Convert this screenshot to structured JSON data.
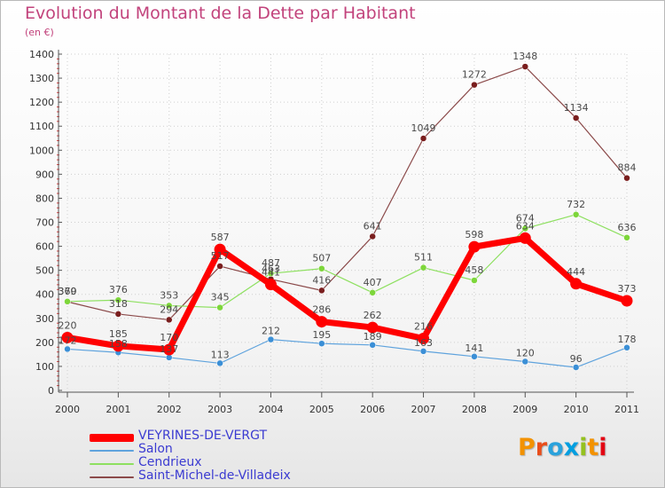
{
  "title": "Evolution du Montant de la Dette par Habitant",
  "unit": "(en €)",
  "brand": {
    "letters": [
      "P",
      "r",
      "o",
      "x",
      "i",
      "t",
      "i"
    ],
    "colors": [
      "#f39200",
      "#e94e1b",
      "#2aa2dc",
      "#009ee0",
      "#95c11f",
      "#f39200",
      "#e30613"
    ]
  },
  "chart_data": {
    "type": "line",
    "title": "Evolution du Montant de la Dette par Habitant",
    "ylabel": "(en €)",
    "xlabel": "",
    "x": [
      "2000",
      "2001",
      "2002",
      "2003",
      "2004",
      "2005",
      "2006",
      "2007",
      "2008",
      "2009",
      "2010",
      "2011"
    ],
    "ylim": [
      0,
      1400
    ],
    "yticks": [
      0,
      100,
      200,
      300,
      400,
      500,
      600,
      700,
      800,
      900,
      1000,
      1100,
      1200,
      1300,
      1400
    ],
    "grid": true,
    "legend_position": "bottom-left",
    "series": [
      {
        "name": "Saint-Michel-de-Villadeix",
        "color": "#7a1e1e",
        "line_color": "#8b4a4a",
        "width": 1.2,
        "values": [
          369,
          318,
          294,
          517,
          463,
          416,
          641,
          1049,
          1272,
          1348,
          1134,
          884
        ]
      },
      {
        "name": "Cendrieux",
        "color": "#7dd63a",
        "line_color": "#8ee060",
        "width": 1.2,
        "values": [
          370,
          376,
          353,
          345,
          487,
          507,
          407,
          511,
          458,
          674,
          732,
          636
        ]
      },
      {
        "name": "Salon",
        "color": "#3b8fd6",
        "line_color": "#5fa3dd",
        "width": 1.2,
        "values": [
          172,
          158,
          137,
          113,
          212,
          195,
          189,
          163,
          141,
          120,
          96,
          178
        ]
      },
      {
        "name": "VEYRINES-DE-VERGT",
        "color": "#ff0000",
        "line_color": "#ff0000",
        "width": 7,
        "values": [
          220,
          185,
          170,
          587,
          441,
          286,
          262,
          216,
          598,
          634,
          444,
          373
        ]
      }
    ],
    "data_labels": [
      [
        "369",
        "318",
        "294",
        "517",
        "463",
        "416",
        "641",
        "1049",
        "1272",
        "1348",
        "1134",
        "884"
      ],
      [
        "370",
        "376",
        "353",
        "345",
        "487",
        "507",
        "407",
        "511",
        "458",
        "674",
        "732",
        "636"
      ],
      [
        "172",
        "158",
        "137",
        "113",
        "212",
        "195",
        "189",
        "163",
        "141",
        "120",
        "96",
        "178"
      ],
      [
        "220",
        "185",
        "170",
        "587",
        "441",
        "286",
        "262",
        "216",
        "598",
        "634",
        "444",
        "373"
      ]
    ]
  },
  "legend": [
    {
      "label": "VEYRINES-DE-VERGT",
      "color": "#ff0000",
      "thickness": 9
    },
    {
      "label": "Salon",
      "color": "#5fa3dd",
      "thickness": 2
    },
    {
      "label": "Cendrieux",
      "color": "#8ee060",
      "thickness": 2
    },
    {
      "label": "Saint-Michel-de-Villadeix",
      "color": "#8b4a4a",
      "thickness": 2
    }
  ]
}
